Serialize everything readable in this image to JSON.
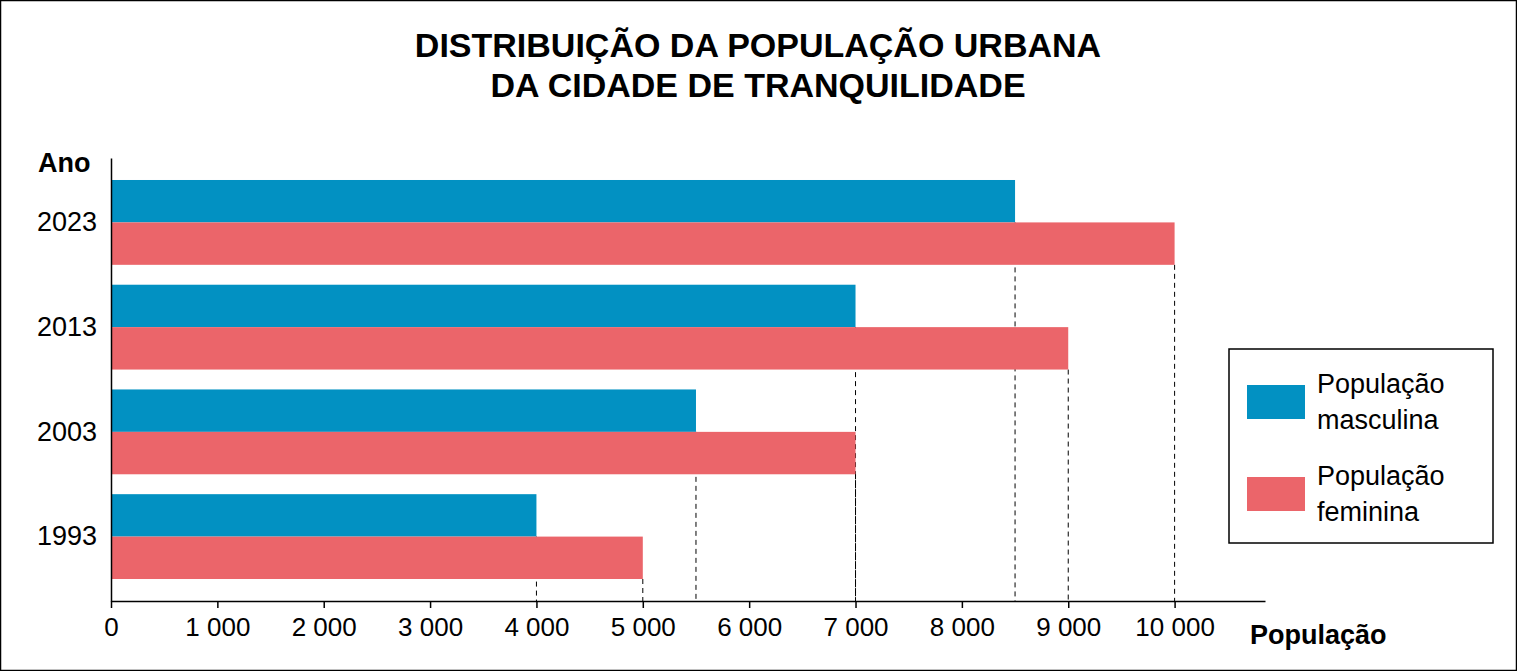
{
  "chart_data": {
    "type": "bar",
    "orientation": "horizontal",
    "title": "DISTRIBUIÇÃO DA POPULAÇÃO URBANA\nDA CIDADE DE TRANQUILIDADE",
    "x_label": "População",
    "y_label": "Ano",
    "categories": [
      "2023",
      "2013",
      "2003",
      "1993"
    ],
    "series": [
      {
        "name": "População masculina",
        "color": "#0291c2",
        "values": [
          8500,
          7000,
          5500,
          4000
        ]
      },
      {
        "name": "População feminina",
        "color": "#eb656a",
        "values": [
          10000,
          9000,
          7000,
          5000
        ]
      }
    ],
    "xlim": [
      0,
      10850
    ],
    "xticks": [
      0,
      {
        "value": 1000,
        "label": "1 000"
      },
      {
        "value": 2000,
        "label": "2 000"
      },
      {
        "value": 3000,
        "label": "3 000"
      },
      {
        "value": 4000,
        "label": "4 000"
      },
      {
        "value": 5000,
        "label": "5 000"
      },
      {
        "value": 6000,
        "label": "6 000"
      },
      {
        "value": 7000,
        "label": "7 000"
      },
      {
        "value": 8000,
        "label": "8 000"
      },
      {
        "value": 9000,
        "label": "9 000"
      },
      {
        "value": 10000,
        "label": "10 000"
      }
    ],
    "grid": false,
    "legend": "right"
  }
}
